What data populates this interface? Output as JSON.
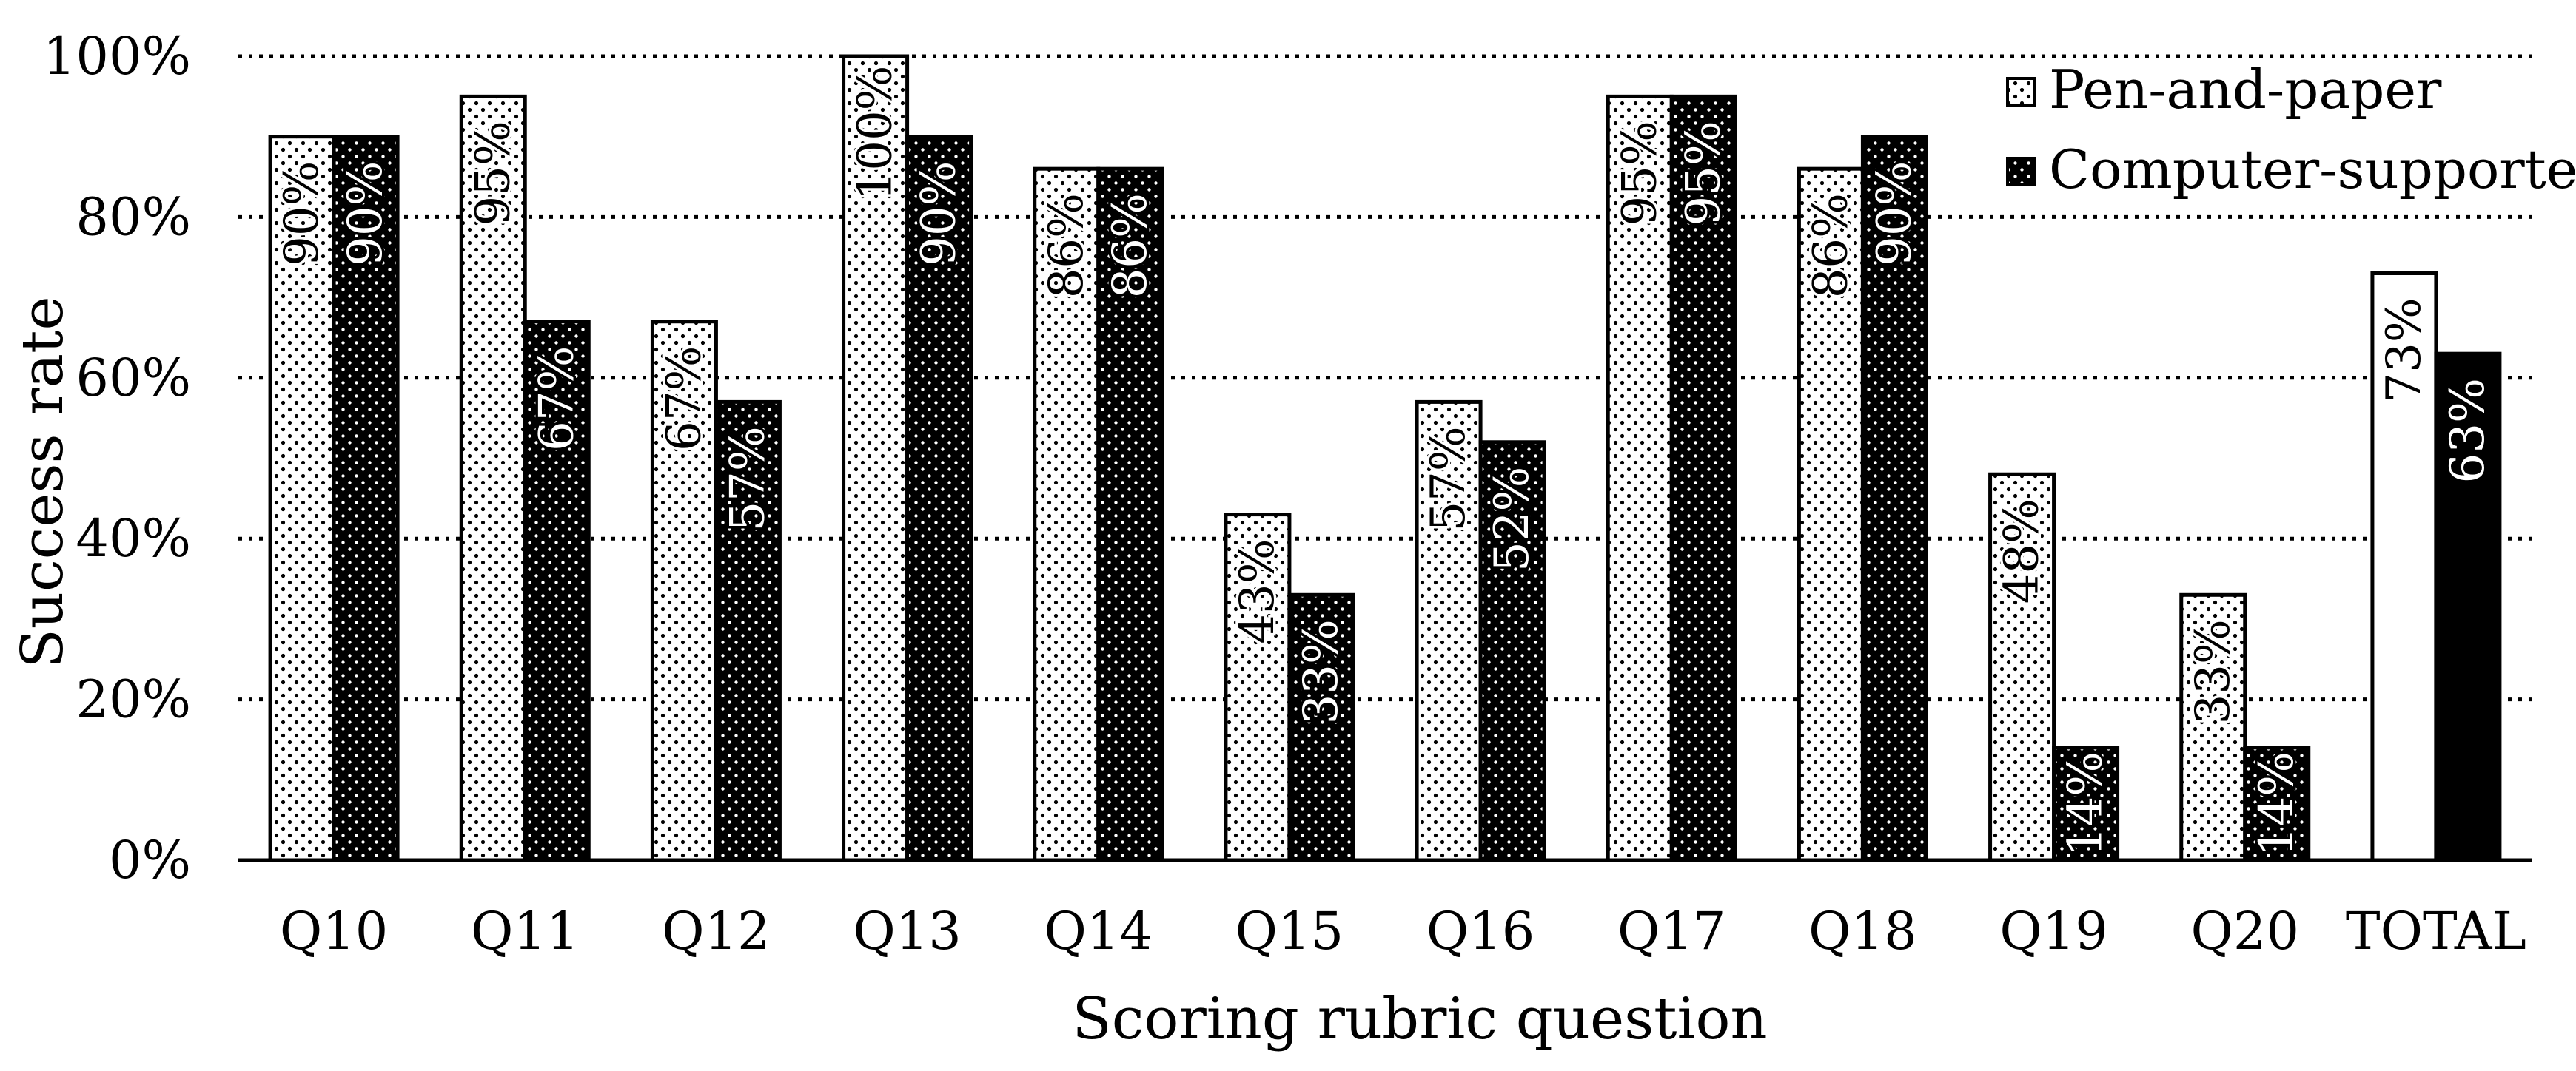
{
  "chart_data": {
    "type": "bar",
    "xlabel": "Scoring rubric question",
    "ylabel": "Success rate",
    "ylim": [
      0,
      100
    ],
    "y_ticks": [
      "0%",
      "20%",
      "40%",
      "60%",
      "80%",
      "100%"
    ],
    "grid": "horizontal dotted",
    "legend_position": "top-right",
    "categories": [
      "Q10",
      "Q11",
      "Q12",
      "Q13",
      "Q14",
      "Q15",
      "Q16",
      "Q17",
      "Q18",
      "Q19",
      "Q20",
      "TOTAL"
    ],
    "series": [
      {
        "name": "Pen-and-paper",
        "values": [
          90,
          95,
          67,
          100,
          86,
          43,
          57,
          95,
          86,
          48,
          33,
          73
        ],
        "labels": [
          "90%",
          "95%",
          "67%",
          "100%",
          "86%",
          "43%",
          "57%",
          "95%",
          "86%",
          "48%",
          "33%",
          "73%"
        ]
      },
      {
        "name": "Computer-supported",
        "values": [
          90,
          67,
          57,
          90,
          86,
          33,
          52,
          95,
          90,
          14,
          14,
          63
        ],
        "labels": [
          "90%",
          "67%",
          "57%",
          "90%",
          "86%",
          "33%",
          "52%",
          "95%",
          "90%",
          "14%",
          "14%",
          "63%"
        ]
      }
    ],
    "colors": {
      "dark": "#000000",
      "light": "#ffffff"
    }
  }
}
